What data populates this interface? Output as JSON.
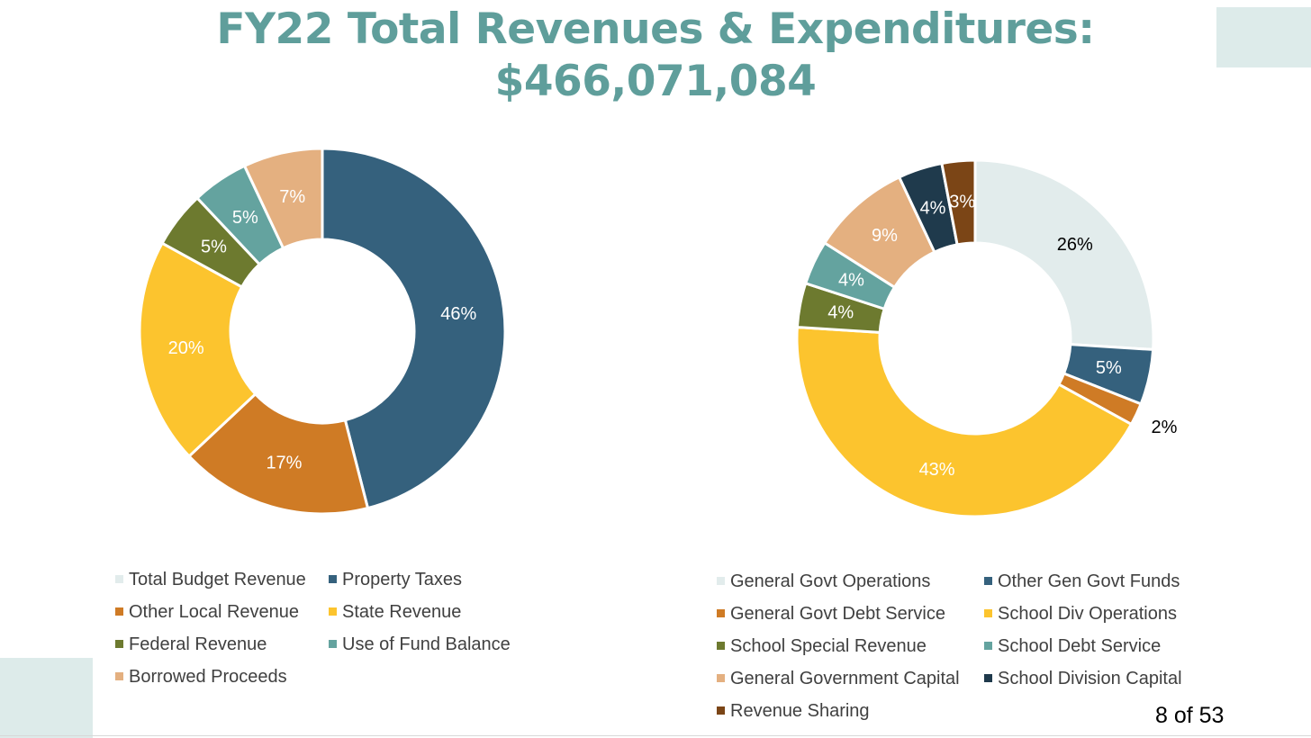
{
  "title": {
    "line1": "FY22 Total Revenues & Expenditures:",
    "line2": "$466,071,084"
  },
  "page_number": "8 of 53",
  "chart_data": [
    {
      "type": "pie",
      "variant": "donut",
      "legend_position": "bottom",
      "legend": [
        {
          "name": "Total Budget Revenue",
          "color": "#e2ecec"
        },
        {
          "name": "Property Taxes",
          "color": "#35617d"
        },
        {
          "name": "Other Local Revenue",
          "color": "#cf7b25"
        },
        {
          "name": "State Revenue",
          "color": "#fcc42e"
        },
        {
          "name": "Federal Revenue",
          "color": "#6d7a2f"
        },
        {
          "name": "Use of Fund Balance",
          "color": "#64a39f"
        },
        {
          "name": "Borrowed Proceeds",
          "color": "#e4b080"
        }
      ],
      "slices": [
        {
          "name": "Property Taxes",
          "value": 46,
          "label": "46%",
          "color": "#35617d",
          "label_color": "#ffffff"
        },
        {
          "name": "Other Local Revenue",
          "value": 17,
          "label": "17%",
          "color": "#cf7b25",
          "label_color": "#ffffff"
        },
        {
          "name": "State Revenue",
          "value": 20,
          "label": "20%",
          "color": "#fcc42e",
          "label_color": "#ffffff"
        },
        {
          "name": "Federal Revenue",
          "value": 5,
          "label": "5%",
          "color": "#6d7a2f",
          "label_color": "#ffffff"
        },
        {
          "name": "Use of Fund Balance",
          "value": 5,
          "label": "5%",
          "color": "#64a39f",
          "label_color": "#ffffff"
        },
        {
          "name": "Borrowed Proceeds",
          "value": 7,
          "label": "7%",
          "color": "#e4b080",
          "label_color": "#ffffff"
        }
      ]
    },
    {
      "type": "pie",
      "variant": "donut",
      "legend_position": "bottom",
      "legend": [
        {
          "name": "General Govt Operations",
          "color": "#e2ecec"
        },
        {
          "name": "Other Gen Govt Funds",
          "color": "#35617d"
        },
        {
          "name": "General Govt Debt Service",
          "color": "#cf7b25"
        },
        {
          "name": "School Div Operations",
          "color": "#fcc42e"
        },
        {
          "name": "School Special Revenue",
          "color": "#6d7a2f"
        },
        {
          "name": "School Debt Service",
          "color": "#64a39f"
        },
        {
          "name": "General Government Capital",
          "color": "#e4b080"
        },
        {
          "name": "School Division Capital",
          "color": "#1f3a4c"
        },
        {
          "name": "Revenue Sharing",
          "color": "#7b4516"
        }
      ],
      "slices": [
        {
          "name": "General Govt Operations",
          "value": 26,
          "label": "26%",
          "color": "#e2ecec",
          "label_color": "#000000"
        },
        {
          "name": "Other Gen Govt Funds",
          "value": 5,
          "label": "5%",
          "color": "#35617d",
          "label_color": "#ffffff"
        },
        {
          "name": "General Govt Debt Service",
          "value": 2,
          "label": "2%",
          "color": "#cf7b25",
          "label_color": "#000000"
        },
        {
          "name": "School Div Operations",
          "value": 43,
          "label": "43%",
          "color": "#fcc42e",
          "label_color": "#ffffff"
        },
        {
          "name": "School Special Revenue",
          "value": 4,
          "label": "4%",
          "color": "#6d7a2f",
          "label_color": "#ffffff"
        },
        {
          "name": "School Debt Service",
          "value": 4,
          "label": "4%",
          "color": "#64a39f",
          "label_color": "#ffffff"
        },
        {
          "name": "General Government Capital",
          "value": 9,
          "label": "9%",
          "color": "#e4b080",
          "label_color": "#ffffff"
        },
        {
          "name": "School Division Capital",
          "value": 4,
          "label": "4%",
          "color": "#1f3a4c",
          "label_color": "#ffffff"
        },
        {
          "name": "Revenue Sharing",
          "value": 3,
          "label": "3%",
          "color": "#7b4516",
          "label_color": "#ffffff"
        }
      ]
    }
  ]
}
